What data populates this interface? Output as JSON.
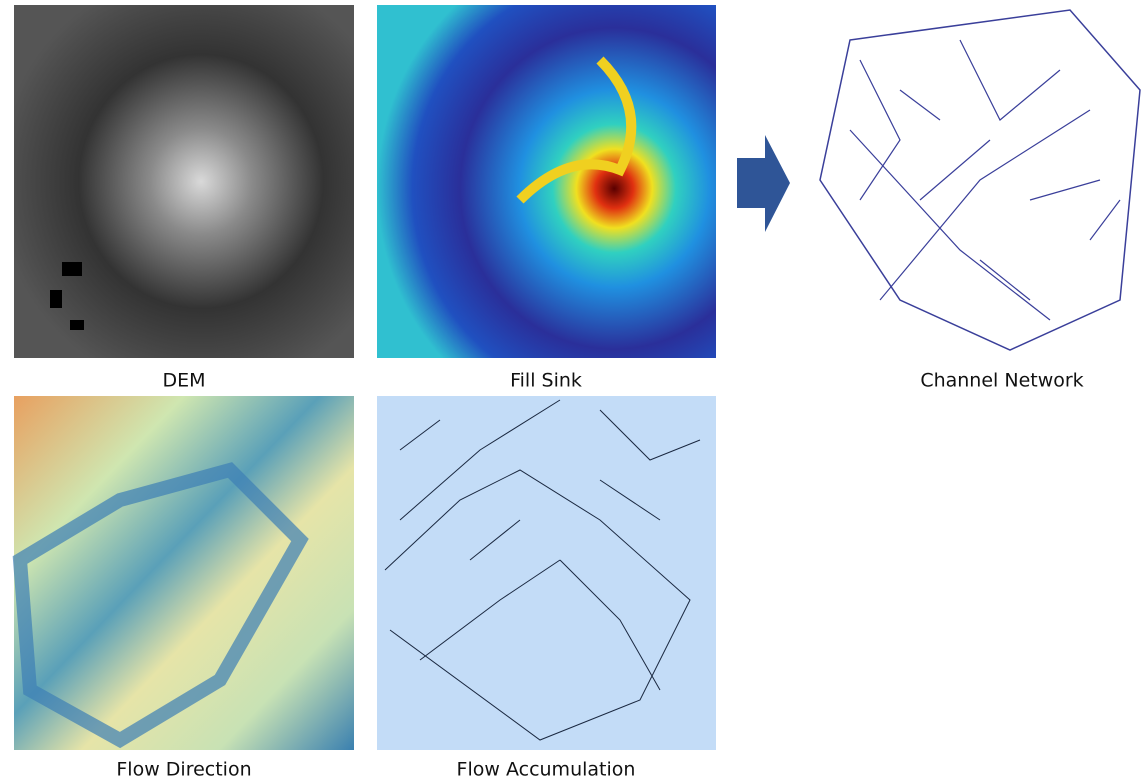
{
  "panels": [
    {
      "label": "DEM"
    },
    {
      "label": "Fill Sink"
    },
    {
      "label": "Channel Network"
    },
    {
      "label": "Flow Direction"
    },
    {
      "label": "Flow Accumulation"
    }
  ]
}
